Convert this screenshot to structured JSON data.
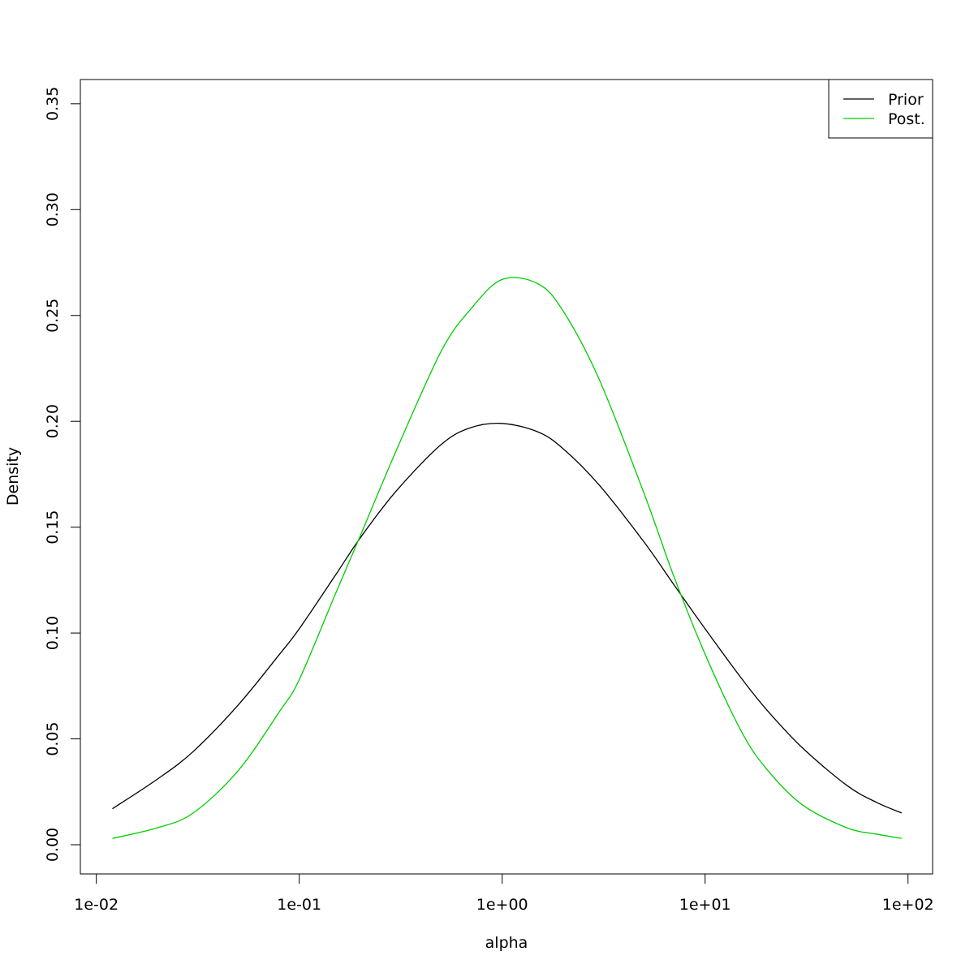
{
  "chart_data": {
    "type": "line",
    "title": "",
    "xlabel": "alpha",
    "ylabel": "Density",
    "x_scale": "log10",
    "xlim": [
      0.012,
      93
    ],
    "ylim": [
      0.0,
      0.35
    ],
    "x_ticks": [
      {
        "value": 0.01,
        "label": "1e-02"
      },
      {
        "value": 0.1,
        "label": "1e-01"
      },
      {
        "value": 1,
        "label": "1e+00"
      },
      {
        "value": 10,
        "label": "1e+01"
      },
      {
        "value": 100,
        "label": "1e+02"
      }
    ],
    "y_ticks": [
      {
        "value": 0.0,
        "label": "0.00"
      },
      {
        "value": 0.05,
        "label": "0.05"
      },
      {
        "value": 0.1,
        "label": "0.10"
      },
      {
        "value": 0.15,
        "label": "0.15"
      },
      {
        "value": 0.2,
        "label": "0.20"
      },
      {
        "value": 0.25,
        "label": "0.25"
      },
      {
        "value": 0.3,
        "label": "0.30"
      },
      {
        "value": 0.35,
        "label": "0.35"
      }
    ],
    "grid": false,
    "legend": {
      "position": "top-right",
      "entries": [
        {
          "name": "Prior",
          "color": "#000000"
        },
        {
          "name": "Post.",
          "color": "#00cd00"
        }
      ]
    },
    "series": [
      {
        "name": "Prior",
        "color": "#000000",
        "x": [
          0.012,
          0.02,
          0.03,
          0.05,
          0.08,
          0.1,
          0.15,
          0.2,
          0.3,
          0.5,
          0.7,
          1.0,
          1.5,
          2.0,
          3.0,
          5.0,
          7.0,
          10.0,
          15.0,
          20.0,
          30.0,
          50.0,
          70.0,
          93.0
        ],
        "values": [
          0.017,
          0.031,
          0.044,
          0.066,
          0.09,
          0.102,
          0.127,
          0.145,
          0.167,
          0.189,
          0.197,
          0.199,
          0.195,
          0.187,
          0.17,
          0.143,
          0.123,
          0.102,
          0.079,
          0.064,
          0.046,
          0.028,
          0.02,
          0.015
        ]
      },
      {
        "name": "Post.",
        "color": "#00cd00",
        "x": [
          0.012,
          0.02,
          0.03,
          0.05,
          0.08,
          0.1,
          0.15,
          0.2,
          0.3,
          0.5,
          0.7,
          1.0,
          1.5,
          2.0,
          3.0,
          5.0,
          7.0,
          10.0,
          15.0,
          20.0,
          30.0,
          50.0,
          70.0,
          93.0
        ],
        "values": [
          0.003,
          0.008,
          0.015,
          0.035,
          0.063,
          0.078,
          0.118,
          0.146,
          0.186,
          0.233,
          0.253,
          0.267,
          0.265,
          0.252,
          0.22,
          0.166,
          0.127,
          0.09,
          0.054,
          0.036,
          0.019,
          0.008,
          0.005,
          0.003
        ]
      }
    ]
  }
}
